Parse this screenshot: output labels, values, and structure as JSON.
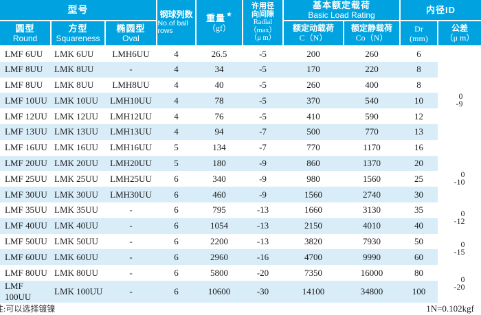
{
  "colors": {
    "header_bg": "#00a3e0",
    "stripe_bg": "#d8edf8",
    "body_text": "#1b1b1b"
  },
  "header": {
    "model_group": "型号",
    "col_round": {
      "cn": "圆型",
      "en": "Round"
    },
    "col_square": {
      "cn": "方型",
      "en": "Squareness"
    },
    "col_oval": {
      "cn": "椭圆型",
      "en": "Oval"
    },
    "col_ball_rows": {
      "cn": "钢球列数",
      "en": "No.of ball rows"
    },
    "col_weight": {
      "cn": "重量",
      "star": "★",
      "unit": "（gf）"
    },
    "col_radial": {
      "cn1": "许用径",
      "cn2": "向间隙",
      "en": "Radial",
      "max": "（max）",
      "unit": "（μ m）"
    },
    "group_load": {
      "cn": "基本额定载荷",
      "en": "Basic Load Rating"
    },
    "col_dynamic": {
      "cn": "额定动载荷",
      "en": "C（N）"
    },
    "col_static": {
      "cn": "额定静载荷",
      "en": "Co（N）"
    },
    "group_id": "内径ID",
    "col_dr": {
      "cn": "Dr",
      "unit": "(mm)"
    },
    "col_tolerance": {
      "cn": "公差",
      "unit": "（μ m）"
    }
  },
  "rows": [
    {
      "round": "LMF 6UU",
      "square": "LMK 6UU",
      "oval": "LMH6UU",
      "ball_rows": "4",
      "weight": "26.5",
      "radial": "-5",
      "c": "200",
      "co": "260",
      "dr": "6"
    },
    {
      "round": "LMF 8UU",
      "square": "LMK 8UU",
      "oval": "-",
      "ball_rows": "4",
      "weight": "34",
      "radial": "-5",
      "c": "170",
      "co": "220",
      "dr": "8"
    },
    {
      "round": "LMF 8UU",
      "square": "LMK 8UU",
      "oval": "LMH8UU",
      "ball_rows": "4",
      "weight": "40",
      "radial": "-5",
      "c": "260",
      "co": "400",
      "dr": "8"
    },
    {
      "round": "LMF 10UU",
      "square": "LMK 10UU",
      "oval": "LMH10UU",
      "ball_rows": "4",
      "weight": "78",
      "radial": "-5",
      "c": "370",
      "co": "540",
      "dr": "10"
    },
    {
      "round": "LMF 12UU",
      "square": "LMK 12UU",
      "oval": "LMH12UU",
      "ball_rows": "4",
      "weight": "76",
      "radial": "-5",
      "c": "410",
      "co": "590",
      "dr": "12"
    },
    {
      "round": "LMF 13UU",
      "square": "LMK 13UU",
      "oval": "LMH13UU",
      "ball_rows": "4",
      "weight": "94",
      "radial": "-7",
      "c": "500",
      "co": "770",
      "dr": "13"
    },
    {
      "round": "LMF 16UU",
      "square": "LMK 16UU",
      "oval": "LMH16UU",
      "ball_rows": "5",
      "weight": "134",
      "radial": "-7",
      "c": "770",
      "co": "1170",
      "dr": "16"
    },
    {
      "round": "LMF 20UU",
      "square": "LMK 20UU",
      "oval": "LMH20UU",
      "ball_rows": "5",
      "weight": "180",
      "radial": "-9",
      "c": "860",
      "co": "1370",
      "dr": "20"
    },
    {
      "round": "LMF 25UU",
      "square": "LMK 25UU",
      "oval": "LMH25UU",
      "ball_rows": "6",
      "weight": "340",
      "radial": "-9",
      "c": "980",
      "co": "1560",
      "dr": "25"
    },
    {
      "round": "LMF 30UU",
      "square": "LMK 30UU",
      "oval": "LMH30UU",
      "ball_rows": "6",
      "weight": "460",
      "radial": "-9",
      "c": "1560",
      "co": "2740",
      "dr": "30"
    },
    {
      "round": "LMF 35UU",
      "square": "LMK 35UU",
      "oval": "-",
      "ball_rows": "6",
      "weight": "795",
      "radial": "-13",
      "c": "1660",
      "co": "3130",
      "dr": "35"
    },
    {
      "round": "LMF 40UU",
      "square": "LMK 40UU",
      "oval": "-",
      "ball_rows": "6",
      "weight": "1054",
      "radial": "-13",
      "c": "2150",
      "co": "4010",
      "dr": "40"
    },
    {
      "round": "LMF 50UU",
      "square": "LMK 50UU",
      "oval": "-",
      "ball_rows": "6",
      "weight": "2200",
      "radial": "-13",
      "c": "3820",
      "co": "7930",
      "dr": "50"
    },
    {
      "round": "LMF 60UU",
      "square": "LMK 60UU",
      "oval": "-",
      "ball_rows": "6",
      "weight": "2960",
      "radial": "-16",
      "c": "4700",
      "co": "9990",
      "dr": "60"
    },
    {
      "round": "LMF 80UU",
      "square": "LMK 80UU",
      "oval": "-",
      "ball_rows": "6",
      "weight": "5800",
      "radial": "-20",
      "c": "7350",
      "co": "16000",
      "dr": "80"
    },
    {
      "round": "LMF 100UU",
      "square": "LMK 100UU",
      "oval": "-",
      "ball_rows": "6",
      "weight": "10600",
      "radial": "-30",
      "c": "14100",
      "co": "34800",
      "dr": "100"
    }
  ],
  "tolerance_groups": [
    {
      "row_span": 7,
      "upper": "0",
      "lower": "-9"
    },
    {
      "row_span": 3,
      "upper": "0",
      "lower": "-10"
    },
    {
      "row_span": 2,
      "upper": "0",
      "lower": "-12"
    },
    {
      "row_span": 2,
      "upper": "0",
      "lower": "-15"
    },
    {
      "row_span": 2,
      "upper": "0",
      "lower": "-20"
    }
  ],
  "footer": {
    "note": "注:可以选择镀镍",
    "conversion": "1N=0.102kgf"
  }
}
